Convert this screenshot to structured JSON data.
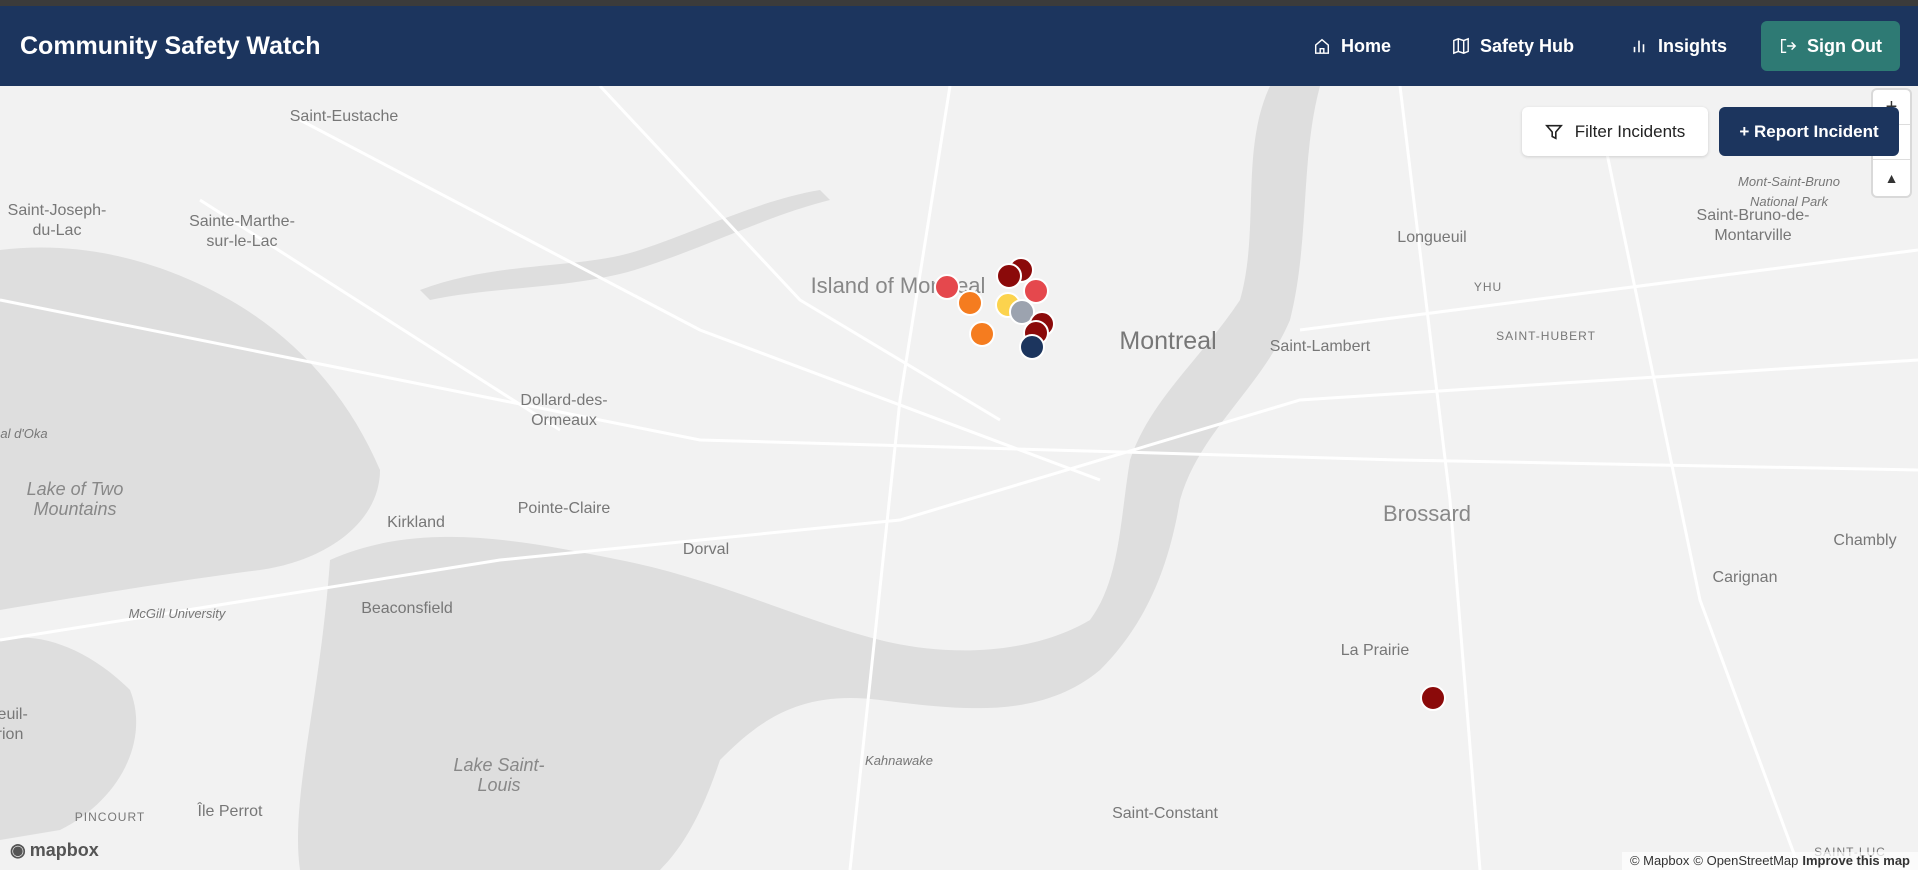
{
  "header": {
    "title": "Community Safety Watch",
    "nav": [
      {
        "label": "Home",
        "icon": "home-icon"
      },
      {
        "label": "Safety Hub",
        "icon": "map-icon"
      },
      {
        "label": "Insights",
        "icon": "bar-chart-icon"
      }
    ],
    "sign_out": "Sign Out"
  },
  "toolbar": {
    "filter": "Filter Incidents",
    "report": "+ Report Incident"
  },
  "map_controls": {
    "zoom_in": "+",
    "compass": "▲"
  },
  "map_labels": [
    "Saint-Eustache",
    "Saint-Joseph-du-Lac",
    "Sainte-Marthe-sur-le-Lac",
    "Island of Montreal",
    "Montreal",
    "Longueuil",
    "YHU",
    "SAINT-HUBERT",
    "Saint-Lambert",
    "Mont-Saint-Bruno National Park",
    "Saint-Bruno-de-Montarville",
    "Dollard-des-Ormeaux",
    "Lake of Two Mountains",
    "Pointe-Claire",
    "Kirkland",
    "Dorval",
    "Brossard",
    "Chambly",
    "Carignan",
    "McGill University",
    "Beaconsfield",
    "La Prairie",
    "Kahnawake",
    "Lake Saint-Louis",
    "Saint-Constant",
    "Île Perrot",
    "PINCOURT",
    "al d'Oka",
    "reuil-rion",
    "SAINT-LUC"
  ],
  "markers": [
    {
      "color": "#e5484d"
    },
    {
      "color": "#f57c1f"
    },
    {
      "color": "#f57c1f"
    },
    {
      "color": "#fcd34d"
    },
    {
      "color": "#8b0a0a"
    },
    {
      "color": "#8b0a0a"
    },
    {
      "color": "#e5484d"
    },
    {
      "color": "#9ca3af"
    },
    {
      "color": "#8b0a0a"
    },
    {
      "color": "#8b0a0a"
    },
    {
      "color": "#1c355e"
    },
    {
      "color": "#8b0a0a"
    }
  ],
  "attribution": {
    "mapbox": "© Mapbox",
    "osm": "© OpenStreetMap",
    "improve": "Improve this map",
    "logo": "mapbox"
  }
}
